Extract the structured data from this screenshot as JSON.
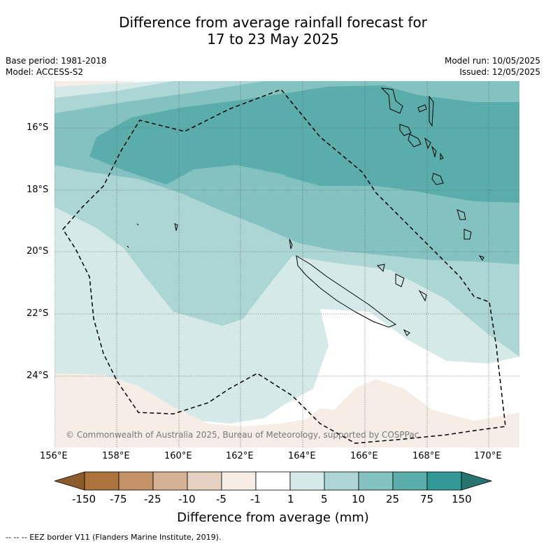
{
  "title": {
    "line1": "Difference from average rainfall forecast for",
    "line2": "17 to 23 May 2025"
  },
  "meta": {
    "base_period": "Base period: 1981-2018",
    "model": "Model: ACCESS-S2",
    "model_run": "Model run: 10/05/2025",
    "issued": "Issued: 12/05/2025"
  },
  "map": {
    "lat_labels": [
      "16°S",
      "18°S",
      "20°S",
      "22°S",
      "24°S"
    ],
    "lon_labels": [
      "156°E",
      "158°E",
      "160°E",
      "162°E",
      "164°E",
      "166°E",
      "168°E",
      "170°E"
    ],
    "copyright": "© Commonwealth of Australia 2025, Bureau of Meteorology, supported by COSPPac"
  },
  "colorbar": {
    "labels": [
      "-150",
      "-75",
      "-25",
      "-10",
      "-5",
      "-1",
      "1",
      "5",
      "10",
      "25",
      "75",
      "150"
    ],
    "colors": [
      "#8c5a2b",
      "#ad733d",
      "#c39266",
      "#d4b294",
      "#e6d0bf",
      "#f5ede6",
      "#ffffff",
      "#d5eae8",
      "#acd6d4",
      "#83c2c0",
      "#5aadab",
      "#339996",
      "#267370"
    ],
    "title": "Difference from average (mm)"
  },
  "footer": "--  --  -- EEZ border V11 (Flanders Marine Institute, 2019)."
}
